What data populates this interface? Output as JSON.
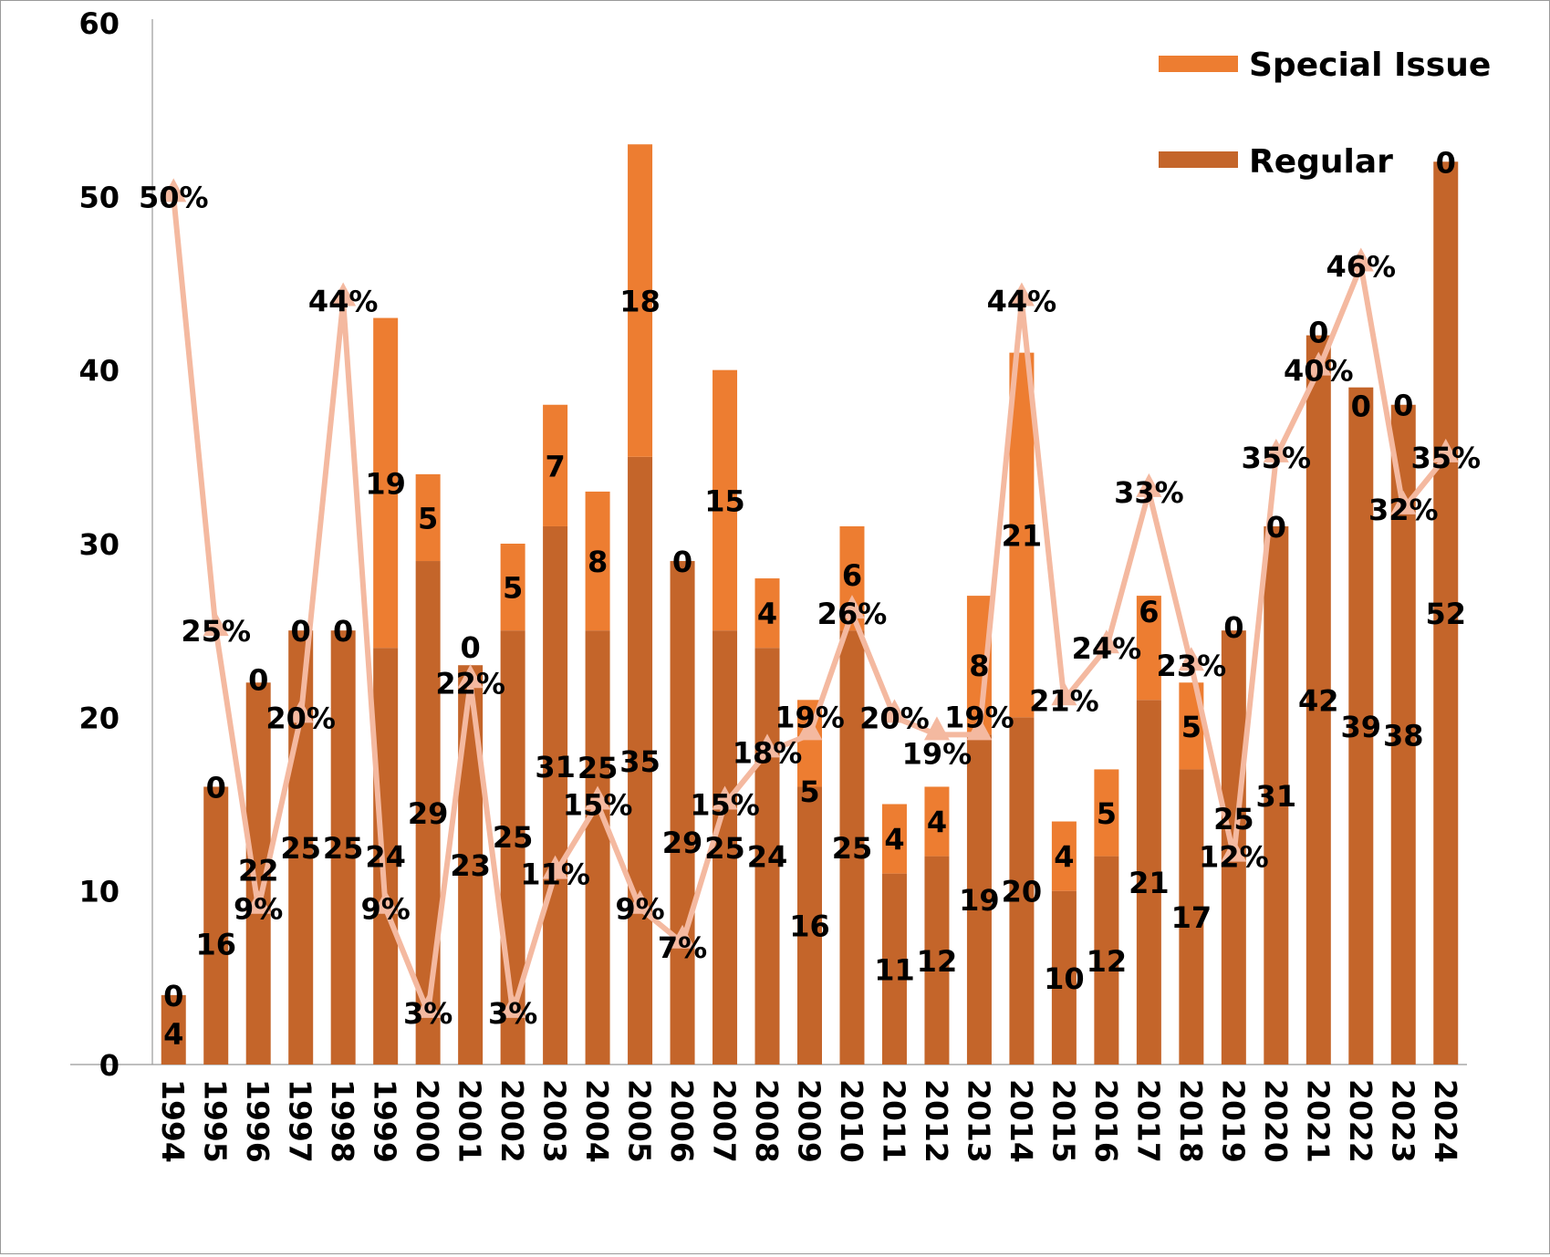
{
  "chart_data": {
    "type": "bar",
    "stacked": true,
    "categories": [
      "1994",
      "1995",
      "1996",
      "1997",
      "1998",
      "1999",
      "2000",
      "2001",
      "2002",
      "2003",
      "2004",
      "2005",
      "2006",
      "2007",
      "2008",
      "2009",
      "2010",
      "2011",
      "2012",
      "2013",
      "2014",
      "2015",
      "2016",
      "2017",
      "2018",
      "2019",
      "2020",
      "2021",
      "2022",
      "2023",
      "2024"
    ],
    "series": [
      {
        "name": "Regular",
        "color": "#C4652A",
        "values": [
          4,
          16,
          22,
          25,
          25,
          24,
          29,
          23,
          25,
          31,
          25,
          35,
          29,
          25,
          24,
          16,
          25,
          11,
          12,
          19,
          20,
          10,
          12,
          21,
          17,
          25,
          31,
          42,
          39,
          38,
          52
        ]
      },
      {
        "name": "Special Issue",
        "color": "#ED7D31",
        "values": [
          0,
          0,
          0,
          0,
          0,
          19,
          5,
          0,
          5,
          7,
          8,
          18,
          0,
          15,
          4,
          5,
          6,
          4,
          4,
          8,
          21,
          4,
          5,
          6,
          5,
          0,
          0,
          0,
          0,
          0,
          0
        ]
      }
    ],
    "line": {
      "type": "line",
      "color": "#F4B9A0",
      "values": [
        50,
        25,
        9,
        20,
        44,
        9,
        3,
        22,
        3,
        11,
        15,
        9,
        7,
        15,
        18,
        19,
        26,
        20,
        19,
        19,
        44,
        21,
        24,
        33,
        23,
        12,
        35,
        40,
        46,
        32,
        35
      ],
      "labels": [
        "50%",
        "25%",
        "9%",
        "20%",
        "44%",
        "9%",
        "3%",
        "22%",
        "3%",
        "11%",
        "15%",
        "9%",
        "7%",
        "15%",
        "18%",
        "19%",
        "26%",
        "20%",
        "19%",
        "19%",
        "44%",
        "21%",
        "24%",
        "33%",
        "23%",
        "12%",
        "35%",
        "40%",
        "46%",
        "32%",
        "35%"
      ]
    },
    "yticks": [
      "0",
      "10",
      "20",
      "30",
      "40",
      "50",
      "60"
    ],
    "ylim": [
      0,
      60
    ],
    "legend": {
      "position": "top-right",
      "entries": [
        "Special Issue",
        "Regular"
      ]
    },
    "grid": false
  }
}
